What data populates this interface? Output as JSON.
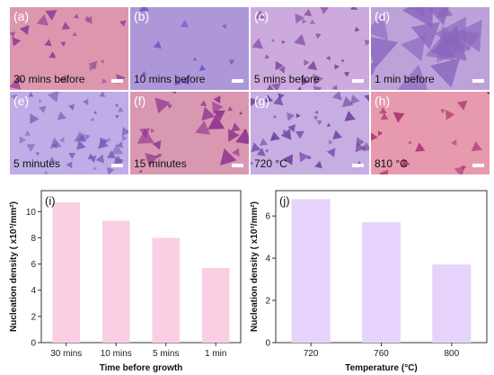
{
  "panels": [
    {
      "label": "(a)",
      "caption": "30 mins before",
      "bg": "#d98fa8",
      "flake": "#8a3a9a",
      "density": 22
    },
    {
      "label": "(b)",
      "caption": "10 mins before",
      "bg": "#a78fd6",
      "flake": "#6f4fc0",
      "density": 10
    },
    {
      "label": "(c)",
      "caption": "5 mins before",
      "bg": "#c8a3dc",
      "flake": "#7a3c96",
      "density": 30
    },
    {
      "label": "(d)",
      "caption": "1 min before",
      "bg": "#b79bd6",
      "flake": "#8a66bd",
      "density": 18
    },
    {
      "label": "(e)",
      "caption": "5 minutes",
      "bg": "#b9a6e4",
      "flake": "#7a5cb8",
      "density": 45
    },
    {
      "label": "(f)",
      "caption": "15 minutes",
      "bg": "#d690ab",
      "flake": "#8c2f8e",
      "density": 26
    },
    {
      "label": "(g)",
      "caption": "720 °C",
      "bg": "#c2a7e0",
      "flake": "#6e3f9e",
      "density": 40
    },
    {
      "label": "(h)",
      "caption": "810 °C",
      "bg": "#e592a8",
      "flake": "#a8336f",
      "density": 18
    }
  ],
  "chart_data": [
    {
      "type": "bar",
      "panel_label": "(i)",
      "categories": [
        "30 mins",
        "10 mins",
        "5 mins",
        "1 min"
      ],
      "values": [
        10.7,
        9.3,
        8.0,
        5.7
      ],
      "xlabel": "Time before growth",
      "ylabel": "Nucleation density ( x10³/mm²)",
      "ylim": [
        0,
        11.6
      ],
      "yticks": [
        0,
        2,
        4,
        6,
        8,
        10
      ],
      "bar_color": "#fbcfe3",
      "grid": false
    },
    {
      "type": "bar",
      "panel_label": "(j)",
      "categories": [
        "720",
        "760",
        "800"
      ],
      "values": [
        6.8,
        5.7,
        3.7
      ],
      "xlabel": "Temperature (°C)",
      "ylabel": "Nucleation density ( x10³/mm²)",
      "ylim": [
        0,
        7.2
      ],
      "yticks": [
        0,
        2,
        4,
        6
      ],
      "bar_color": "#e6d3fb",
      "grid": false
    }
  ]
}
